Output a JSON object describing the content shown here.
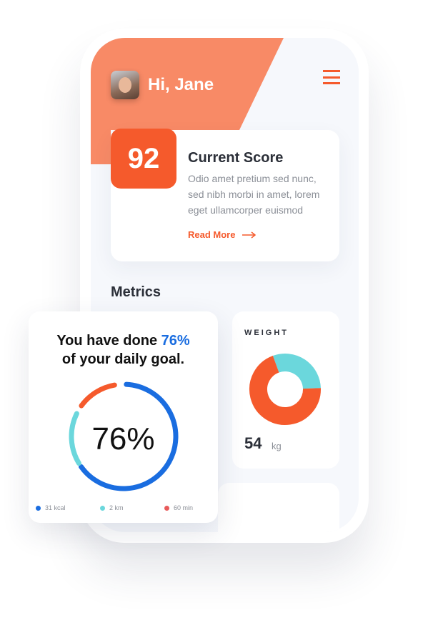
{
  "header": {
    "greeting": "Hi, Jane",
    "menu_icon": "hamburger-icon"
  },
  "score": {
    "value": "92",
    "title": "Current Score",
    "description": "Odio amet pretium sed nunc, sed nibh morbi in amet, lorem eget ullamcorper euismod",
    "read_more": "Read More"
  },
  "metrics": {
    "title": "Metrics"
  },
  "weight": {
    "label": "WEIGHT",
    "value": "54",
    "unit": "kg",
    "chart": {
      "type": "pie",
      "segments": [
        {
          "fraction": 0.3,
          "color": "#6bd7dc"
        },
        {
          "fraction": 0.7,
          "color": "#f55a2c"
        }
      ]
    }
  },
  "goal": {
    "text_prefix": "You have done ",
    "text_highlight": "76%",
    "text_suffix": "of your daily goal.",
    "center": "76%",
    "progress": 0.76,
    "legend": [
      {
        "label": "31 kcal",
        "color": "#1a6de0"
      },
      {
        "label": "2 km",
        "color": "#6bd7dc"
      },
      {
        "label": "60 min",
        "color": "#e85a5a"
      }
    ]
  },
  "colors": {
    "accent": "#f55a2c",
    "header_bg": "#f88a66",
    "blue": "#1a6de0",
    "cyan": "#6bd7dc"
  }
}
